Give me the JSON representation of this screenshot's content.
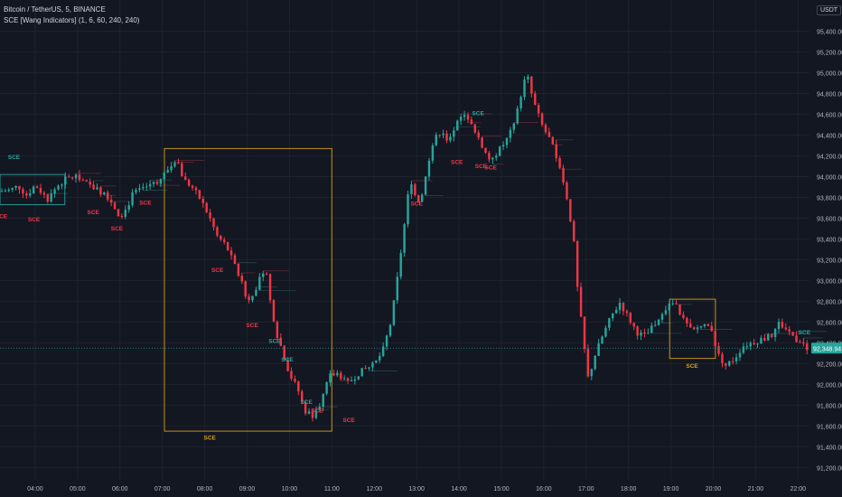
{
  "header": {
    "symbol_line": "Bitcoin / TetherUS, 5, BINANCE",
    "indicator_line": "SCE [Wang Indicators] (1, 6, 60, 240, 240)"
  },
  "currency_button": "USDT",
  "colors": {
    "background": "#131722",
    "bull": "#26a69a",
    "bear": "#f23645",
    "box": "#d4a017",
    "axis_text": "#b2b5be",
    "price_tag": "#26a69a"
  },
  "chart_data": {
    "type": "candlestick",
    "ylim": [
      91090,
      95700
    ],
    "xlim": [
      3.17,
      22.27
    ],
    "y_ticks": [
      {
        "v": 95400,
        "label": "95,400.00"
      },
      {
        "v": 95200,
        "label": "95,200.00"
      },
      {
        "v": 95000,
        "label": "95,000.00"
      },
      {
        "v": 94800,
        "label": "94,800.00"
      },
      {
        "v": 94600,
        "label": "94,600.00"
      },
      {
        "v": 94400,
        "label": "94,400.00"
      },
      {
        "v": 94200,
        "label": "94,200.00"
      },
      {
        "v": 94000,
        "label": "94,000.00"
      },
      {
        "v": 93800,
        "label": "93,800.00"
      },
      {
        "v": 93600,
        "label": "93,600.00"
      },
      {
        "v": 93400,
        "label": "93,400.00"
      },
      {
        "v": 93200,
        "label": "93,200.00"
      },
      {
        "v": 93000,
        "label": "93,000.00"
      },
      {
        "v": 92800,
        "label": "92,800.00"
      },
      {
        "v": 92600,
        "label": "92,600.00"
      },
      {
        "v": 92400,
        "label": "92,400.00"
      },
      {
        "v": 92200,
        "label": "92,200.00"
      },
      {
        "v": 92000,
        "label": "92,000.00"
      },
      {
        "v": 91800,
        "label": "91,800.00"
      },
      {
        "v": 91600,
        "label": "91,600.00"
      },
      {
        "v": 91400,
        "label": "91,400.00"
      },
      {
        "v": 91200,
        "label": "91,200.00"
      }
    ],
    "x_ticks": [
      {
        "h": 4,
        "label": "04:00"
      },
      {
        "h": 5,
        "label": "05:00"
      },
      {
        "h": 6,
        "label": "06:00"
      },
      {
        "h": 7,
        "label": "07:00"
      },
      {
        "h": 8,
        "label": "08:00"
      },
      {
        "h": 9,
        "label": "09:00"
      },
      {
        "h": 10,
        "label": "10:00"
      },
      {
        "h": 11,
        "label": "11:00"
      },
      {
        "h": 12,
        "label": "12:00"
      },
      {
        "h": 13,
        "label": "13:00"
      },
      {
        "h": 14,
        "label": "14:00"
      },
      {
        "h": 15,
        "label": "15:00"
      },
      {
        "h": 16,
        "label": "16:00"
      },
      {
        "h": 17,
        "label": "17:00"
      },
      {
        "h": 18,
        "label": "18:00"
      },
      {
        "h": 19,
        "label": "19:00"
      },
      {
        "h": 20,
        "label": "20:00"
      },
      {
        "h": 21,
        "label": "21:00"
      },
      {
        "h": 22,
        "label": "22:00"
      }
    ],
    "last_price": {
      "value": 92348.94,
      "label": "92,348.94"
    },
    "price_path": [
      [
        3.17,
        93860
      ],
      [
        3.4,
        93870
      ],
      [
        3.6,
        93910
      ],
      [
        3.8,
        93820
      ],
      [
        4.0,
        93920
      ],
      [
        4.3,
        93780
      ],
      [
        4.5,
        93900
      ],
      [
        4.7,
        93970
      ],
      [
        5.0,
        94010
      ],
      [
        5.2,
        93930
      ],
      [
        5.45,
        93880
      ],
      [
        5.6,
        93840
      ],
      [
        5.75,
        93790
      ],
      [
        5.85,
        93720
      ],
      [
        6.0,
        93620
      ],
      [
        6.15,
        93690
      ],
      [
        6.3,
        93830
      ],
      [
        6.5,
        93880
      ],
      [
        6.7,
        93930
      ],
      [
        6.9,
        93950
      ],
      [
        7.15,
        94080
      ],
      [
        7.35,
        94160
      ],
      [
        7.5,
        93970
      ],
      [
        7.7,
        93900
      ],
      [
        7.9,
        93780
      ],
      [
        8.1,
        93620
      ],
      [
        8.3,
        93420
      ],
      [
        8.5,
        93340
      ],
      [
        8.7,
        93150
      ],
      [
        8.9,
        92950
      ],
      [
        9.0,
        92800
      ],
      [
        9.15,
        92890
      ],
      [
        9.3,
        93010
      ],
      [
        9.45,
        93090
      ],
      [
        9.55,
        92790
      ],
      [
        9.7,
        92490
      ],
      [
        9.85,
        92300
      ],
      [
        10.0,
        92100
      ],
      [
        10.2,
        91950
      ],
      [
        10.35,
        91750
      ],
      [
        10.55,
        91700
      ],
      [
        10.75,
        91840
      ],
      [
        10.95,
        92080
      ],
      [
        11.15,
        92110
      ],
      [
        11.35,
        92000
      ],
      [
        11.6,
        92100
      ],
      [
        11.8,
        92150
      ],
      [
        12.0,
        92190
      ],
      [
        12.2,
        92320
      ],
      [
        12.4,
        92610
      ],
      [
        12.55,
        93030
      ],
      [
        12.7,
        93500
      ],
      [
        12.85,
        93990
      ],
      [
        13.0,
        93790
      ],
      [
        13.1,
        93760
      ],
      [
        13.25,
        94110
      ],
      [
        13.4,
        94340
      ],
      [
        13.6,
        94460
      ],
      [
        13.75,
        94320
      ],
      [
        13.9,
        94450
      ],
      [
        14.1,
        94640
      ],
      [
        14.3,
        94480
      ],
      [
        14.5,
        94320
      ],
      [
        14.7,
        94170
      ],
      [
        14.9,
        94230
      ],
      [
        15.1,
        94340
      ],
      [
        15.3,
        94490
      ],
      [
        15.5,
        94860
      ],
      [
        15.6,
        94990
      ],
      [
        15.75,
        94730
      ],
      [
        15.95,
        94500
      ],
      [
        16.15,
        94350
      ],
      [
        16.35,
        94130
      ],
      [
        16.55,
        93790
      ],
      [
        16.7,
        93410
      ],
      [
        16.8,
        92900
      ],
      [
        16.95,
        92370
      ],
      [
        17.05,
        92050
      ],
      [
        17.2,
        92270
      ],
      [
        17.4,
        92480
      ],
      [
        17.6,
        92660
      ],
      [
        17.8,
        92790
      ],
      [
        18.0,
        92640
      ],
      [
        18.2,
        92500
      ],
      [
        18.4,
        92460
      ],
      [
        18.6,
        92570
      ],
      [
        18.8,
        92710
      ],
      [
        19.1,
        92790
      ],
      [
        19.3,
        92620
      ],
      [
        19.5,
        92500
      ],
      [
        19.7,
        92570
      ],
      [
        19.95,
        92550
      ],
      [
        20.1,
        92290
      ],
      [
        20.3,
        92180
      ],
      [
        20.5,
        92250
      ],
      [
        20.7,
        92370
      ],
      [
        20.9,
        92400
      ],
      [
        21.1,
        92430
      ],
      [
        21.35,
        92460
      ],
      [
        21.55,
        92590
      ],
      [
        21.8,
        92500
      ],
      [
        22.0,
        92420
      ],
      [
        22.27,
        92330
      ]
    ],
    "detection_boxes": [
      {
        "x0": 3.17,
        "x1": 4.7,
        "y0": 93730,
        "y1": 94020,
        "color": "bull"
      },
      {
        "x0": 7.05,
        "x1": 11.0,
        "y0": 91550,
        "y1": 94270,
        "color": "box"
      },
      {
        "x0": 18.97,
        "x1": 20.05,
        "y0": 92250,
        "y1": 92820,
        "color": "box"
      }
    ],
    "sce_labels": [
      {
        "h": 3.5,
        "y": 94170,
        "color": "bull",
        "text": "SCE"
      },
      {
        "h": 3.2,
        "y": 93600,
        "color": "bear",
        "text": "SCE"
      },
      {
        "h": 3.97,
        "y": 93570,
        "color": "bear",
        "text": "SCE"
      },
      {
        "h": 5.37,
        "y": 93640,
        "color": "bear",
        "text": "SCE"
      },
      {
        "h": 5.93,
        "y": 93480,
        "color": "bear",
        "text": "SCE"
      },
      {
        "h": 6.6,
        "y": 93730,
        "color": "bear",
        "text": "SCE"
      },
      {
        "h": 8.3,
        "y": 93080,
        "color": "bear",
        "text": "SCE"
      },
      {
        "h": 9.12,
        "y": 92550,
        "color": "bear",
        "text": "SCE"
      },
      {
        "h": 9.65,
        "y": 92400,
        "color": "bull",
        "text": "SCE"
      },
      {
        "h": 9.95,
        "y": 92220,
        "color": "bull",
        "text": "SCE"
      },
      {
        "h": 10.4,
        "y": 91810,
        "color": "bull",
        "text": "SCE"
      },
      {
        "h": 10.65,
        "y": 91730,
        "color": "bear",
        "text": "SCE"
      },
      {
        "h": 11.4,
        "y": 91640,
        "color": "bear",
        "text": "SCE"
      },
      {
        "h": 8.12,
        "y": 91470,
        "color": "box",
        "text": "SCE"
      },
      {
        "h": 13.0,
        "y": 93720,
        "color": "bear",
        "text": "SCE"
      },
      {
        "h": 13.95,
        "y": 94120,
        "color": "bear",
        "text": "SCE"
      },
      {
        "h": 14.45,
        "y": 94590,
        "color": "bull",
        "text": "SCE"
      },
      {
        "h": 14.52,
        "y": 94080,
        "color": "bear",
        "text": "SCE"
      },
      {
        "h": 14.75,
        "y": 94070,
        "color": "bear",
        "text": "SCE"
      },
      {
        "h": 19.5,
        "y": 92160,
        "color": "box",
        "text": "SCE"
      },
      {
        "h": 22.15,
        "y": 92480,
        "color": "bull",
        "text": "SCE"
      }
    ]
  }
}
